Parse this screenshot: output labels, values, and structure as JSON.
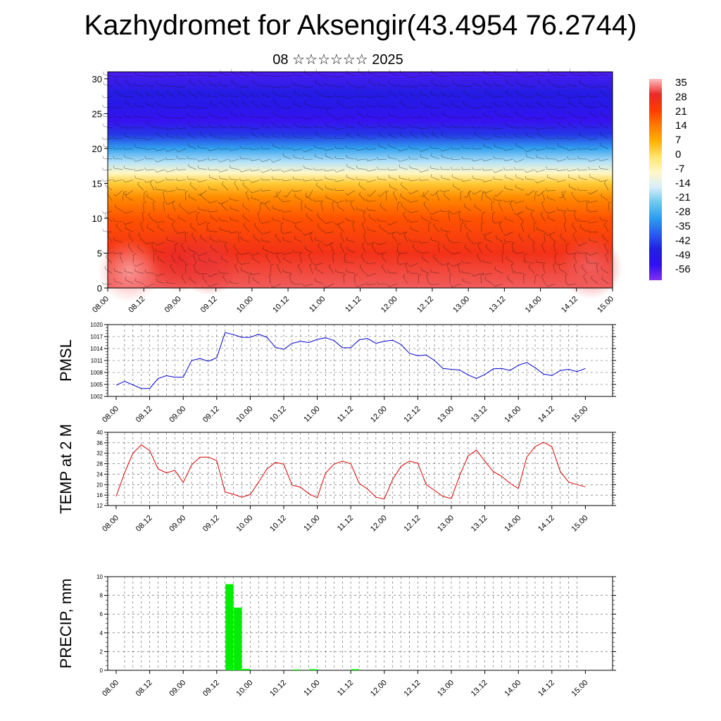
{
  "title": "Kazhydromet for Aksengir(43.4954 76.2744)",
  "subtitle": "08 ☆☆☆☆☆☆ 2025",
  "time_labels": [
    "08.00",
    "08.12",
    "09.00",
    "09.12",
    "10.00",
    "10.12",
    "11.00",
    "11.12",
    "12.00",
    "12.12",
    "13.00",
    "13.12",
    "14.00",
    "14.12",
    "15.00"
  ],
  "chart_data": [
    {
      "type": "heatmap",
      "ylim": [
        0,
        30
      ],
      "yticks": [
        0,
        5,
        10,
        15,
        20,
        25,
        30
      ],
      "colorbar": {
        "labels": [
          "35",
          "28",
          "21",
          "14",
          "7",
          "0",
          "-7",
          "-14",
          "-21",
          "-28",
          "-35",
          "-42",
          "-49",
          "-56"
        ],
        "stops": [
          "#ffc0c0",
          "#e82a2a",
          "#ff3a00",
          "#ff7a00",
          "#ffb000",
          "#ffe46a",
          "#fff8c8",
          "#d8eefa",
          "#6cc8ee",
          "#2c9cf0",
          "#2a5cf0",
          "#2020e0",
          "#3010f0",
          "#8030f0"
        ]
      },
      "temperature_profile": [
        {
          "h": 0,
          "t": 30
        },
        {
          "h": 5,
          "t": 24
        },
        {
          "h": 10,
          "t": 17
        },
        {
          "h": 13,
          "t": 10
        },
        {
          "h": 15,
          "t": 1
        },
        {
          "h": 16.5,
          "t": -10
        },
        {
          "h": 18,
          "t": -20
        },
        {
          "h": 20,
          "t": -32
        },
        {
          "h": 22,
          "t": -45
        },
        {
          "h": 24,
          "t": -56
        },
        {
          "h": 26,
          "t": -52
        },
        {
          "h": 28,
          "t": -50
        },
        {
          "h": 31,
          "t": -58
        }
      ],
      "warm_spots": [
        {
          "time": 0.3,
          "h": 2.5,
          "t": 33
        },
        {
          "time": 1.0,
          "h": 4,
          "t": 27
        },
        {
          "time": 1.4,
          "h": 3.5,
          "t": 28
        },
        {
          "time": 6.7,
          "h": 3,
          "t": 30
        }
      ]
    },
    {
      "type": "line",
      "ylabel": "PMSL",
      "ylim": [
        1002,
        1020
      ],
      "yticks": [
        1002,
        1005,
        1008,
        1011,
        1014,
        1017,
        1020
      ],
      "color": "#0000cc",
      "series": [
        {
          "values": [
            1004.8,
            1005.8,
            1004.9,
            1004.0,
            1004.0,
            1006.5,
            1007.2,
            1006.8,
            1006.8,
            1011.0,
            1011.5,
            1010.8,
            1011.7,
            1018.0,
            1017.5,
            1016.8,
            1016.8,
            1017.6,
            1016.8,
            1014.3,
            1013.8,
            1015.3,
            1015.8,
            1015.5,
            1016.3,
            1016.7,
            1016.0,
            1014.2,
            1014.2,
            1016.2,
            1016.5,
            1015.3,
            1015.8,
            1016.1,
            1015.0,
            1012.8,
            1012.2,
            1012.4,
            1011.0,
            1009.0,
            1008.8,
            1008.6,
            1007.4,
            1006.5,
            1007.5,
            1008.9,
            1009.0,
            1008.5,
            1009.8,
            1010.5,
            1009.2,
            1007.6,
            1007.2,
            1008.5,
            1008.8,
            1008.2,
            1009.0
          ]
        }
      ]
    },
    {
      "type": "line",
      "ylabel": "TEMP at 2 M",
      "ylim": [
        12,
        40
      ],
      "yticks": [
        12,
        16,
        20,
        24,
        28,
        32,
        36,
        40
      ],
      "color": "#dd0000",
      "series": [
        {
          "values": [
            15.5,
            24.5,
            32.0,
            35.2,
            33.0,
            26.0,
            24.5,
            25.5,
            20.8,
            27.5,
            30.5,
            30.5,
            29.2,
            17.2,
            16.3,
            15.2,
            16.2,
            21.0,
            26.0,
            28.5,
            27.8,
            19.8,
            19.0,
            16.5,
            15.0,
            24.5,
            27.8,
            29.0,
            28.0,
            20.5,
            18.3,
            15.2,
            14.5,
            22.0,
            27.0,
            29.0,
            28.2,
            20.0,
            17.8,
            15.5,
            14.7,
            23.5,
            31.0,
            33.2,
            29.0,
            25.0,
            23.2,
            20.5,
            18.5,
            30.5,
            34.5,
            36.2,
            34.5,
            25.0,
            21.0,
            20.0,
            19.2
          ]
        }
      ]
    },
    {
      "type": "bar",
      "ylabel": "PRECIP, mm",
      "ylim": [
        0,
        10
      ],
      "yticks": [
        0,
        2,
        4,
        6,
        8,
        10
      ],
      "color": "#00ee00",
      "values": [
        0,
        0,
        0,
        0,
        0,
        0,
        0,
        0,
        0,
        0,
        0,
        0,
        0,
        0,
        9.2,
        6.7,
        0.15,
        0,
        0,
        0,
        0,
        0,
        0.08,
        0,
        0.12,
        0,
        0,
        0,
        0,
        0.12,
        0,
        0,
        0,
        0,
        0,
        0,
        0,
        0,
        0,
        0,
        0,
        0,
        0,
        0,
        0,
        0,
        0,
        0,
        0,
        0,
        0,
        0,
        0,
        0,
        0,
        0,
        0
      ]
    }
  ]
}
